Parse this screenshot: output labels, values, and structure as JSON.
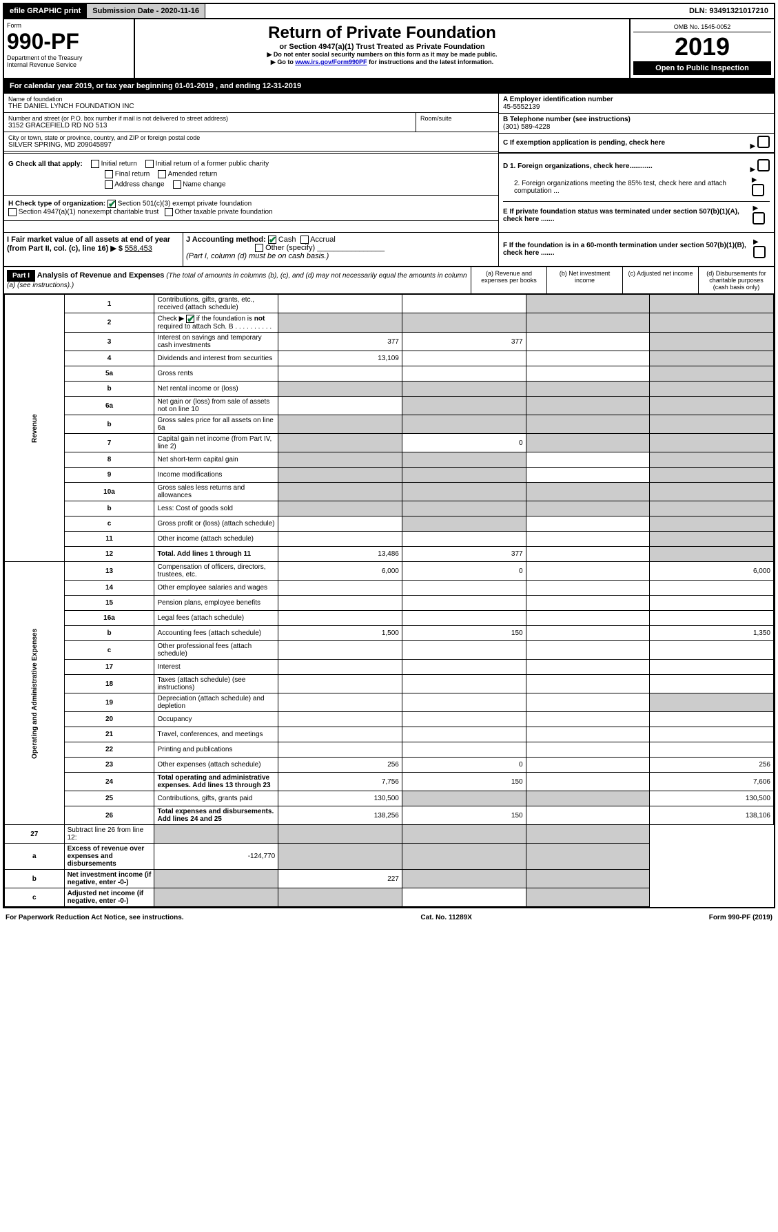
{
  "topbar": {
    "efile": "efile GRAPHIC print",
    "submission_label": "Submission Date - 2020-11-16",
    "dln": "DLN: 93491321017210"
  },
  "header": {
    "form_label": "Form",
    "form_number": "990-PF",
    "dept": "Department of the Treasury",
    "irs": "Internal Revenue Service",
    "title": "Return of Private Foundation",
    "subtitle": "or Section 4947(a)(1) Trust Treated as Private Foundation",
    "warn1": "▶ Do not enter social security numbers on this form as it may be made public.",
    "warn2_pre": "▶ Go to ",
    "warn2_link": "www.irs.gov/Form990PF",
    "warn2_post": " for instructions and the latest information.",
    "omb": "OMB No. 1545-0052",
    "year": "2019",
    "inspect": "Open to Public Inspection"
  },
  "cal": {
    "text_pre": "For calendar year 2019, or tax year beginning ",
    "begin": "01-01-2019",
    "mid": " , and ending ",
    "end": "12-31-2019"
  },
  "info": {
    "name_label": "Name of foundation",
    "name": "THE DANIEL LYNCH FOUNDATION INC",
    "addr_label": "Number and street (or P.O. box number if mail is not delivered to street address)",
    "addr": "3152 GRACEFIELD RD NO 513",
    "room_label": "Room/suite",
    "city_label": "City or town, state or province, country, and ZIP or foreign postal code",
    "city": "SILVER SPRING, MD  209045897",
    "a_label": "A Employer identification number",
    "a_val": "45-5552139",
    "b_label": "B Telephone number (see instructions)",
    "b_val": "(301) 589-4228",
    "c_label": "C If exemption application is pending, check here"
  },
  "g": {
    "label": "G Check all that apply:",
    "initial": "Initial return",
    "initial_former": "Initial return of a former public charity",
    "final": "Final return",
    "amended": "Amended return",
    "addr_change": "Address change",
    "name_change": "Name change"
  },
  "h": {
    "label": "H Check type of organization:",
    "501c3": "Section 501(c)(3) exempt private foundation",
    "4947": "Section 4947(a)(1) nonexempt charitable trust",
    "other_tax": "Other taxable private foundation"
  },
  "i": {
    "label": "I Fair market value of all assets at end of year (from Part II, col. (c), line 16) ▶ $",
    "val": "558,453"
  },
  "j": {
    "label": "J Accounting method:",
    "cash": "Cash",
    "accrual": "Accrual",
    "other": "Other (specify)",
    "note": "(Part I, column (d) must be on cash basis.)"
  },
  "d": {
    "d1": "D 1. Foreign organizations, check here............",
    "d2": "2. Foreign organizations meeting the 85% test, check here and attach computation ...",
    "e": "E  If private foundation status was terminated under section 507(b)(1)(A), check here .......",
    "f": "F  If the foundation is in a 60-month termination under section 507(b)(1)(B), check here ......."
  },
  "part1": {
    "label": "Part I",
    "title": "Analysis of Revenue and Expenses",
    "note": "(The total of amounts in columns (b), (c), and (d) may not necessarily equal the amounts in column (a) (see instructions).)",
    "col_a": "(a)   Revenue and expenses per books",
    "col_b": "(b)  Net investment income",
    "col_c": "(c)  Adjusted net income",
    "col_d": "(d)  Disbursements for charitable purposes (cash basis only)"
  },
  "revenue_label": "Revenue",
  "expenses_label": "Operating and Administrative Expenses",
  "rows": [
    {
      "n": "1",
      "d": "shade",
      "a": "",
      "b": "",
      "c": "shade"
    },
    {
      "n": "2",
      "d": "shade",
      "a": "shade",
      "b": "shade",
      "c": "shade",
      "html": true
    },
    {
      "n": "3",
      "d": "shade",
      "a": "377",
      "b": "377",
      "c": ""
    },
    {
      "n": "4",
      "d": "shade",
      "a": "13,109",
      "b": "",
      "c": ""
    },
    {
      "n": "5a",
      "d": "shade",
      "a": "",
      "b": "",
      "c": ""
    },
    {
      "n": "b",
      "d": "shade",
      "a": "shade",
      "b": "shade",
      "c": "shade"
    },
    {
      "n": "6a",
      "d": "shade",
      "a": "",
      "b": "shade",
      "c": "shade"
    },
    {
      "n": "b",
      "d": "shade",
      "a": "shade",
      "b": "shade",
      "c": "shade"
    },
    {
      "n": "7",
      "d": "shade",
      "a": "shade",
      "b": "0",
      "c": "shade"
    },
    {
      "n": "8",
      "d": "shade",
      "a": "shade",
      "b": "shade",
      "c": ""
    },
    {
      "n": "9",
      "d": "shade",
      "a": "shade",
      "b": "shade",
      "c": ""
    },
    {
      "n": "10a",
      "d": "shade",
      "a": "shade",
      "b": "shade",
      "c": "shade"
    },
    {
      "n": "b",
      "d": "shade",
      "a": "shade",
      "b": "shade",
      "c": "shade"
    },
    {
      "n": "c",
      "d": "shade",
      "a": "",
      "b": "shade",
      "c": ""
    },
    {
      "n": "11",
      "d": "shade",
      "a": "",
      "b": "",
      "c": ""
    },
    {
      "n": "12",
      "d": "shade",
      "a": "13,486",
      "b": "377",
      "c": "",
      "bold": true
    }
  ],
  "exp_rows": [
    {
      "n": "13",
      "d": "6,000",
      "a": "6,000",
      "b": "0",
      "c": ""
    },
    {
      "n": "14",
      "d": "",
      "a": "",
      "b": "",
      "c": ""
    },
    {
      "n": "15",
      "d": "",
      "a": "",
      "b": "",
      "c": ""
    },
    {
      "n": "16a",
      "d": "",
      "a": "",
      "b": "",
      "c": ""
    },
    {
      "n": "b",
      "d": "1,350",
      "a": "1,500",
      "b": "150",
      "c": ""
    },
    {
      "n": "c",
      "d": "",
      "a": "",
      "b": "",
      "c": ""
    },
    {
      "n": "17",
      "d": "",
      "a": "",
      "b": "",
      "c": ""
    },
    {
      "n": "18",
      "d": "",
      "a": "",
      "b": "",
      "c": ""
    },
    {
      "n": "19",
      "d": "shade",
      "a": "",
      "b": "",
      "c": ""
    },
    {
      "n": "20",
      "d": "",
      "a": "",
      "b": "",
      "c": ""
    },
    {
      "n": "21",
      "d": "",
      "a": "",
      "b": "",
      "c": ""
    },
    {
      "n": "22",
      "d": "",
      "a": "",
      "b": "",
      "c": ""
    },
    {
      "n": "23",
      "d": "256",
      "a": "256",
      "b": "0",
      "c": ""
    },
    {
      "n": "24",
      "d": "7,606",
      "a": "7,756",
      "b": "150",
      "c": "",
      "bold": true
    },
    {
      "n": "25",
      "d": "130,500",
      "a": "130,500",
      "b": "shade",
      "c": "shade"
    },
    {
      "n": "26",
      "d": "138,106",
      "a": "138,256",
      "b": "150",
      "c": "",
      "bold": true
    }
  ],
  "bottom_rows": [
    {
      "n": "27",
      "d": "shade",
      "a": "shade",
      "b": "shade",
      "c": "shade"
    },
    {
      "n": "a",
      "d": "shade",
      "a": "-124,770",
      "b": "shade",
      "c": "shade",
      "bold": true
    },
    {
      "n": "b",
      "d": "shade",
      "a": "shade",
      "b": "227",
      "c": "shade",
      "bold": true
    },
    {
      "n": "c",
      "d": "shade",
      "a": "shade",
      "b": "shade",
      "c": "",
      "bold": true
    }
  ],
  "footer": {
    "left": "For Paperwork Reduction Act Notice, see instructions.",
    "mid": "Cat. No. 11289X",
    "right": "Form 990-PF (2019)"
  }
}
